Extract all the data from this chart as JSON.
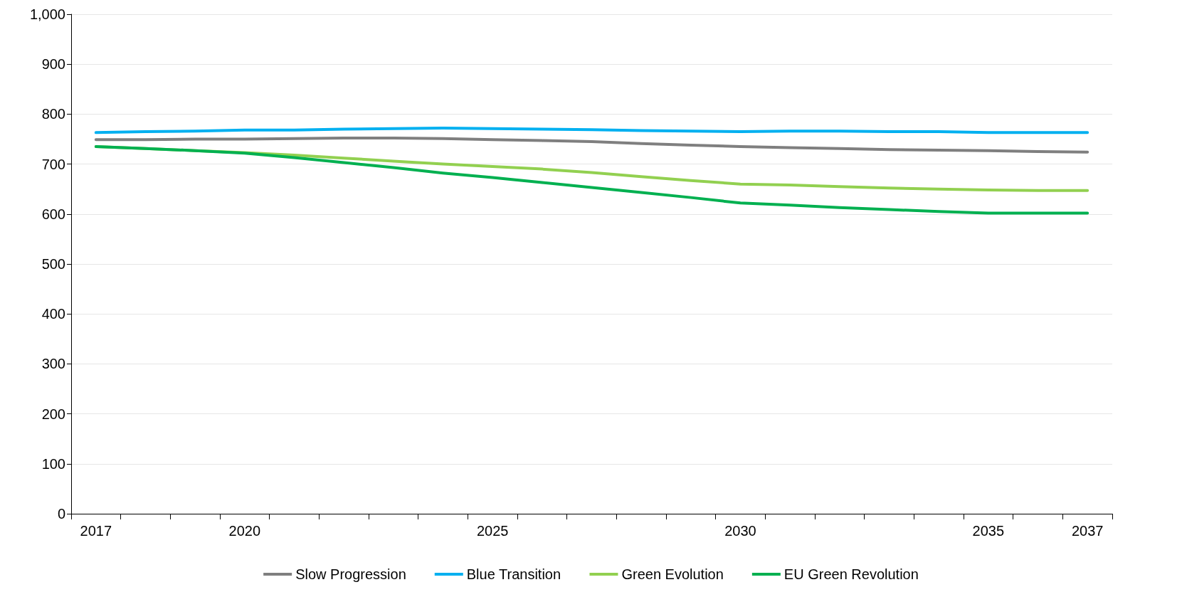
{
  "chart_data": {
    "type": "line",
    "categories": [
      "2017",
      null,
      null,
      "2020",
      null,
      null,
      null,
      null,
      "2025",
      null,
      null,
      null,
      null,
      "2030",
      null,
      null,
      null,
      null,
      "2035",
      null,
      "2037"
    ],
    "series": [
      {
        "name": "Slow Progression",
        "color": "#7f7f7f",
        "values": [
          749,
          749,
          750,
          750,
          751,
          752,
          752,
          751,
          749,
          747,
          745,
          741,
          738,
          735,
          733,
          731,
          729,
          728,
          727,
          725,
          724
        ]
      },
      {
        "name": "Blue Transition",
        "color": "#00b0f0",
        "values": [
          763,
          765,
          766,
          768,
          768,
          770,
          771,
          772,
          771,
          770,
          769,
          767,
          766,
          765,
          766,
          766,
          765,
          765,
          763,
          763,
          763
        ]
      },
      {
        "name": "Green Evolution",
        "color": "#92d050",
        "values": [
          735,
          731,
          727,
          723,
          718,
          712,
          706,
          700,
          695,
          690,
          683,
          675,
          667,
          660,
          658,
          655,
          652,
          650,
          648,
          647,
          647
        ]
      },
      {
        "name": "EU Green Revolution",
        "color": "#00b050",
        "values": [
          735,
          731,
          727,
          722,
          713,
          703,
          693,
          682,
          673,
          663,
          653,
          643,
          633,
          622,
          618,
          613,
          609,
          605,
          602,
          602,
          602
        ]
      }
    ],
    "ylim": [
      0,
      1000
    ],
    "yticks": [
      0,
      100,
      200,
      300,
      400,
      500,
      600,
      700,
      800,
      900,
      {
        "value": 1000,
        "label": "1,000"
      }
    ],
    "grid": "y",
    "legend": "bottom",
    "marker": "none",
    "line_style": "solid"
  }
}
